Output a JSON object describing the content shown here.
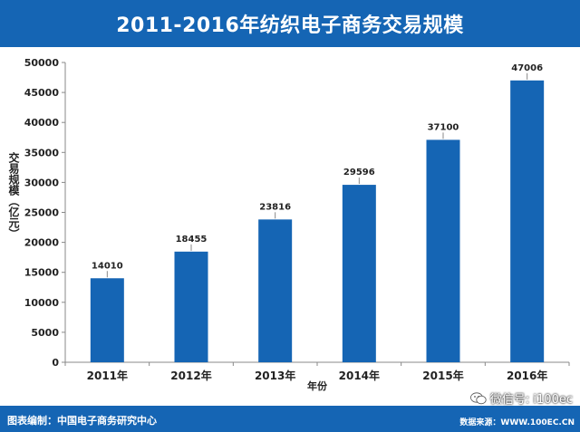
{
  "title": "2011-2016年纺织电子商务交易规模",
  "chart_data": {
    "type": "bar",
    "categories": [
      "2011年",
      "2012年",
      "2013年",
      "2014年",
      "2015年",
      "2016年"
    ],
    "values": [
      14010,
      18455,
      23816,
      29596,
      37100,
      47006
    ],
    "xlabel": "年份",
    "ylabel": "交易规模（亿元）",
    "ylim": [
      0,
      50000
    ],
    "yticks": [
      0,
      5000,
      10000,
      15000,
      20000,
      25000,
      30000,
      35000,
      40000,
      45000,
      50000
    ],
    "grid": false,
    "legend": "none",
    "bar_color": "#1565b4"
  },
  "footer": {
    "left": "图表编制：中国电子商务研究中心",
    "right": "数据来源：WWW.100EC.CN"
  },
  "watermark": {
    "text": "微信号: i100ec",
    "icon": "wechat-icon"
  }
}
